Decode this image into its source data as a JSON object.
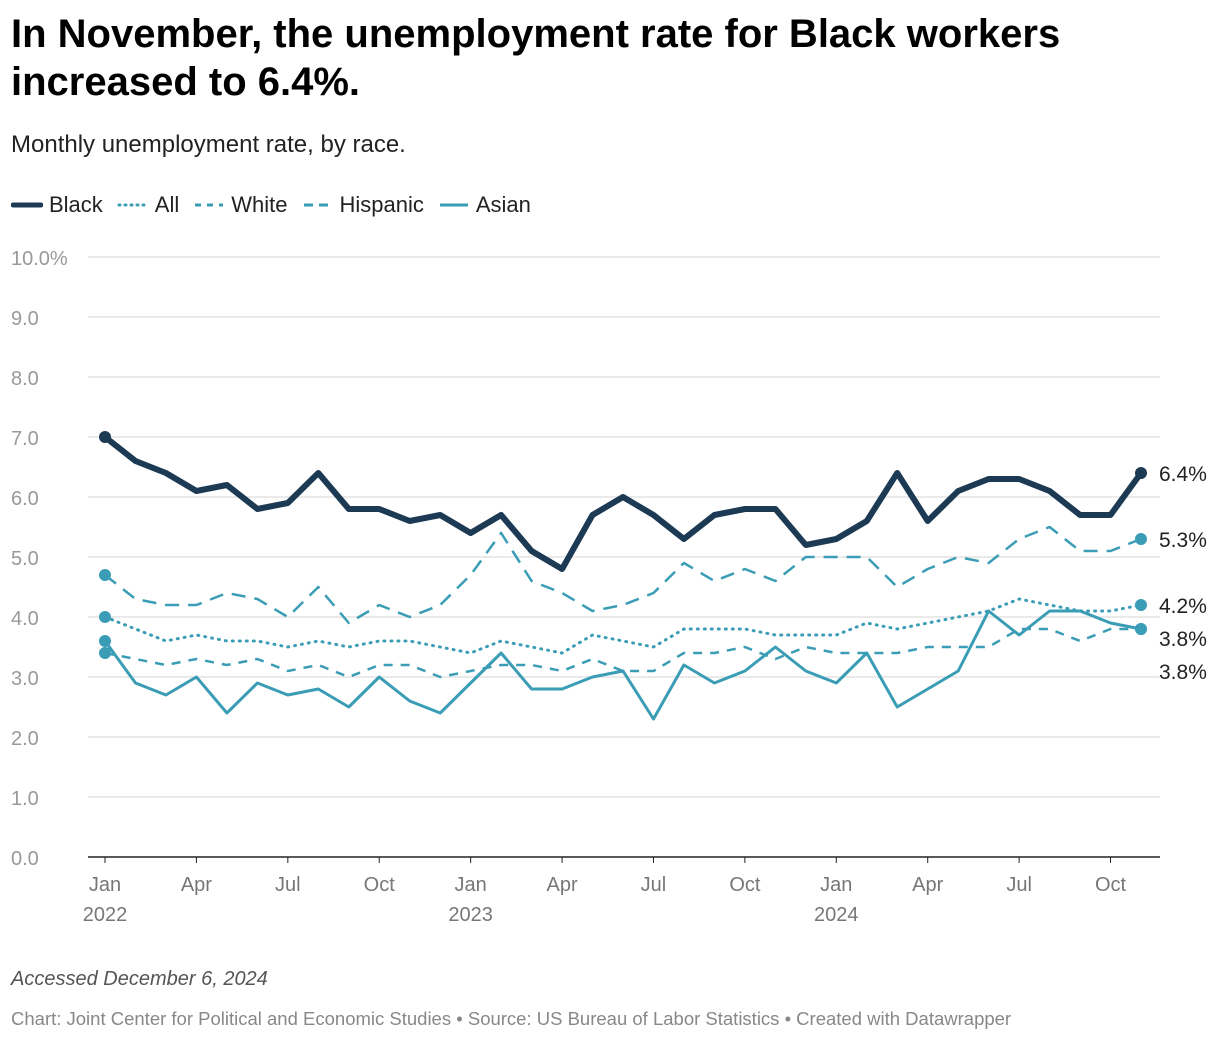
{
  "header": {
    "title": "In November, the unemployment rate for Black workers increased to 6.4%.",
    "subtitle": "Monthly unemployment rate, by race."
  },
  "legend": [
    {
      "label": "Black",
      "color": "#1d3a54",
      "style": "solid-thick"
    },
    {
      "label": "All",
      "color": "#3a9db5",
      "style": "dotted"
    },
    {
      "label": "White",
      "color": "#3a9db5",
      "style": "dashed"
    },
    {
      "label": "Hispanic",
      "color": "#3a9db5",
      "style": "long-dashed"
    },
    {
      "label": "Asian",
      "color": "#3a9db5",
      "style": "solid"
    }
  ],
  "footer": {
    "notes": "Accessed December 6, 2024",
    "credit": "Chart: Joint Center for Political and Economic Studies • Source: US Bureau of Labor Statistics • Created with Datawrapper"
  },
  "chart_data": {
    "type": "line",
    "title": "In November, the unemployment rate for Black workers increased to 6.4%.",
    "subtitle": "Monthly unemployment rate, by race.",
    "xlabel": "",
    "ylabel": "",
    "ylim": [
      0,
      10
    ],
    "grid": true,
    "legend_position": "top-left",
    "y_ticks": [
      "10.0%",
      "9.0",
      "8.0",
      "7.0",
      "6.0",
      "5.0",
      "4.0",
      "3.0",
      "2.0",
      "1.0",
      "0.0"
    ],
    "x_ticks": [
      {
        "index": 0,
        "label": "Jan",
        "sublabel": "2022"
      },
      {
        "index": 3,
        "label": "Apr",
        "sublabel": ""
      },
      {
        "index": 6,
        "label": "Jul",
        "sublabel": ""
      },
      {
        "index": 9,
        "label": "Oct",
        "sublabel": ""
      },
      {
        "index": 12,
        "label": "Jan",
        "sublabel": "2023"
      },
      {
        "index": 15,
        "label": "Apr",
        "sublabel": ""
      },
      {
        "index": 18,
        "label": "Jul",
        "sublabel": ""
      },
      {
        "index": 21,
        "label": "Oct",
        "sublabel": ""
      },
      {
        "index": 24,
        "label": "Jan",
        "sublabel": "2024"
      },
      {
        "index": 27,
        "label": "Apr",
        "sublabel": ""
      },
      {
        "index": 30,
        "label": "Jul",
        "sublabel": ""
      },
      {
        "index": 33,
        "label": "Oct",
        "sublabel": ""
      }
    ],
    "x": [
      "2022-01",
      "2022-02",
      "2022-03",
      "2022-04",
      "2022-05",
      "2022-06",
      "2022-07",
      "2022-08",
      "2022-09",
      "2022-10",
      "2022-11",
      "2022-12",
      "2023-01",
      "2023-02",
      "2023-03",
      "2023-04",
      "2023-05",
      "2023-06",
      "2023-07",
      "2023-08",
      "2023-09",
      "2023-10",
      "2023-11",
      "2023-12",
      "2024-01",
      "2024-02",
      "2024-03",
      "2024-04",
      "2024-05",
      "2024-06",
      "2024-07",
      "2024-08",
      "2024-09",
      "2024-10",
      "2024-11"
    ],
    "series": [
      {
        "name": "Hispanic",
        "color": "#3a9db5",
        "style": "long-dashed",
        "end_label": "5.3%",
        "values": [
          4.7,
          4.3,
          4.2,
          4.2,
          4.4,
          4.3,
          4.0,
          4.5,
          3.9,
          4.2,
          4.0,
          4.2,
          4.7,
          5.4,
          4.6,
          4.4,
          4.1,
          4.2,
          4.4,
          4.9,
          4.6,
          4.8,
          4.6,
          5.0,
          5.0,
          5.0,
          4.5,
          4.8,
          5.0,
          4.9,
          5.3,
          5.5,
          5.1,
          5.1,
          5.3
        ]
      },
      {
        "name": "White",
        "color": "#3a9db5",
        "style": "dashed",
        "end_label": "3.8%",
        "values": [
          3.4,
          3.3,
          3.2,
          3.3,
          3.2,
          3.3,
          3.1,
          3.2,
          3.0,
          3.2,
          3.2,
          3.0,
          3.1,
          3.2,
          3.2,
          3.1,
          3.3,
          3.1,
          3.1,
          3.4,
          3.4,
          3.5,
          3.3,
          3.5,
          3.4,
          3.4,
          3.4,
          3.5,
          3.5,
          3.5,
          3.8,
          3.8,
          3.6,
          3.8,
          3.8
        ]
      },
      {
        "name": "All",
        "color": "#3a9db5",
        "style": "dotted",
        "end_label": "4.2%",
        "values": [
          4.0,
          3.8,
          3.6,
          3.7,
          3.6,
          3.6,
          3.5,
          3.6,
          3.5,
          3.6,
          3.6,
          3.5,
          3.4,
          3.6,
          3.5,
          3.4,
          3.7,
          3.6,
          3.5,
          3.8,
          3.8,
          3.8,
          3.7,
          3.7,
          3.7,
          3.9,
          3.8,
          3.9,
          4.0,
          4.1,
          4.3,
          4.2,
          4.1,
          4.1,
          4.2
        ]
      },
      {
        "name": "Asian",
        "color": "#3a9db5",
        "style": "solid",
        "end_label": "3.8%",
        "values": [
          3.6,
          2.9,
          2.7,
          3.0,
          2.4,
          2.9,
          2.7,
          2.8,
          2.5,
          3.0,
          2.6,
          2.4,
          2.9,
          3.4,
          2.8,
          2.8,
          3.0,
          3.1,
          2.3,
          3.2,
          2.9,
          3.1,
          3.5,
          3.1,
          2.9,
          3.4,
          2.5,
          2.8,
          3.1,
          4.1,
          3.7,
          4.1,
          4.1,
          3.9,
          3.8
        ]
      },
      {
        "name": "Black",
        "color": "#1d3a54",
        "style": "solid-thick",
        "end_label": "6.4%",
        "values": [
          7.0,
          6.6,
          6.4,
          6.1,
          6.2,
          5.8,
          5.9,
          6.4,
          5.8,
          5.8,
          5.6,
          5.7,
          5.4,
          5.7,
          5.1,
          4.8,
          5.7,
          6.0,
          5.7,
          5.3,
          5.7,
          5.8,
          5.8,
          5.2,
          5.3,
          5.6,
          6.4,
          5.6,
          6.1,
          6.3,
          6.3,
          6.1,
          5.7,
          5.7,
          6.4
        ]
      }
    ]
  }
}
